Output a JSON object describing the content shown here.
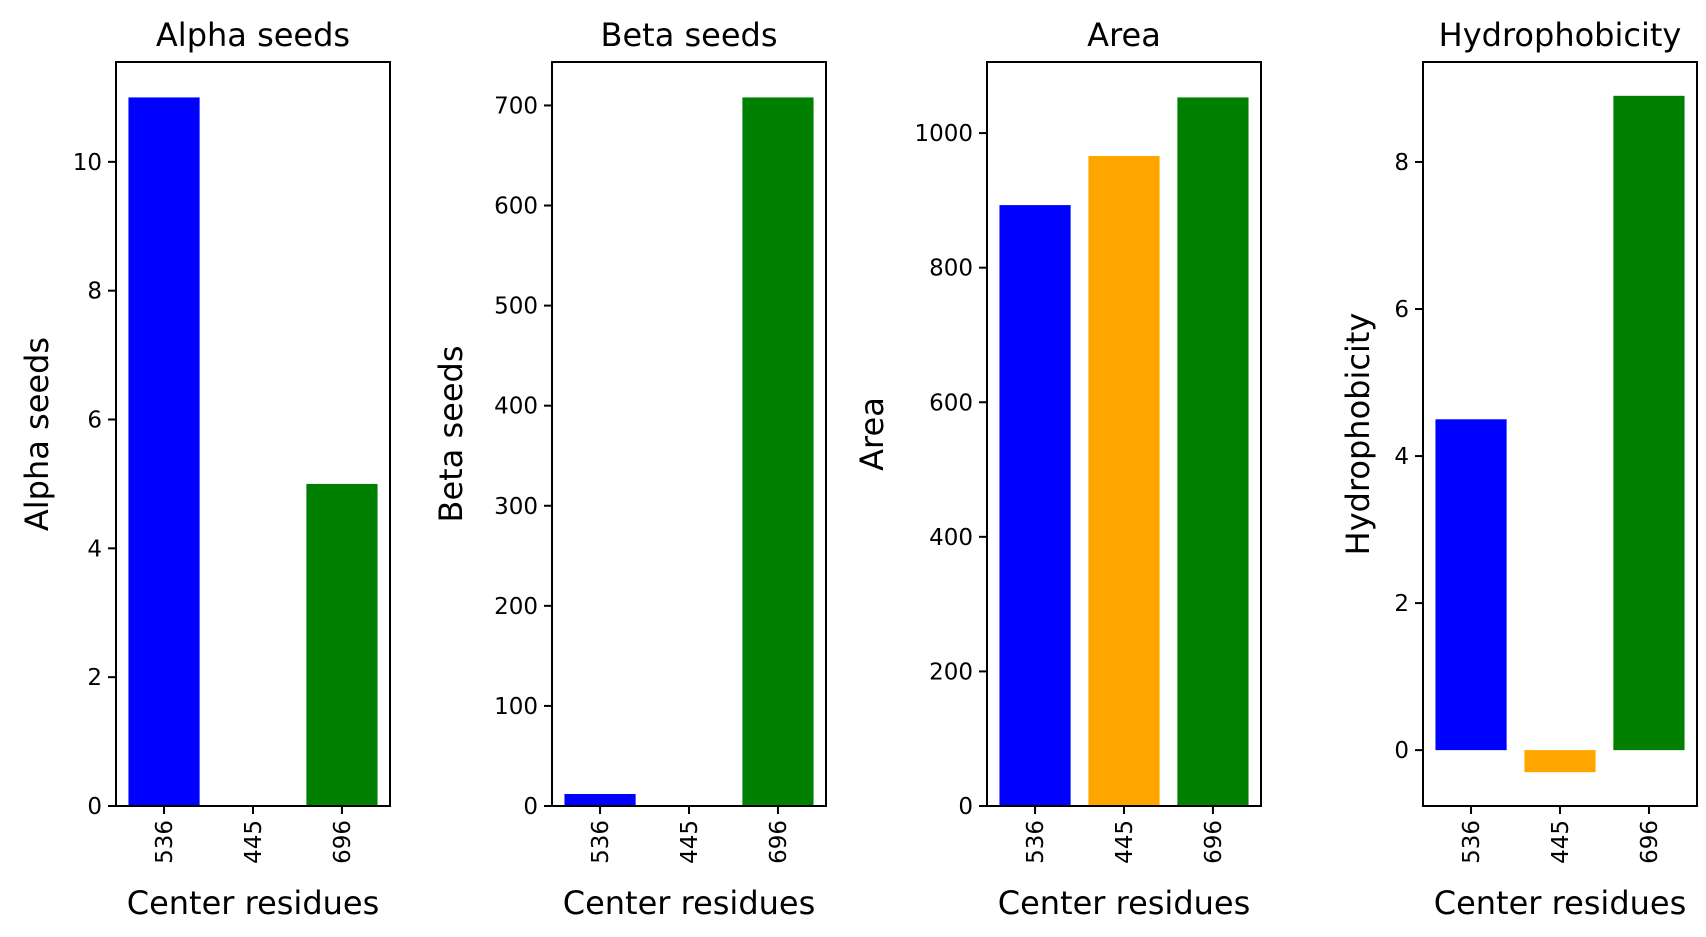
{
  "chart_data": [
    {
      "type": "bar",
      "title": "Alpha seeds",
      "xlabel": "Center residues",
      "ylabel": "Alpha seeds",
      "categories": [
        "536",
        "445",
        "696"
      ],
      "values": [
        11,
        0,
        5
      ],
      "colors": [
        "#0000ff",
        "#ffa500",
        "#008000"
      ],
      "ylim": [
        0,
        11.55
      ],
      "yticks": [
        0,
        2,
        4,
        6,
        8,
        10
      ]
    },
    {
      "type": "bar",
      "title": "Beta seeds",
      "xlabel": "Center residues",
      "ylabel": "Beta seeds",
      "categories": [
        "536",
        "445",
        "696"
      ],
      "values": [
        12,
        0,
        708
      ],
      "colors": [
        "#0000ff",
        "#ffa500",
        "#008000"
      ],
      "ylim": [
        0,
        743.4
      ],
      "yticks": [
        0,
        100,
        200,
        300,
        400,
        500,
        600,
        700
      ]
    },
    {
      "type": "bar",
      "title": "Area",
      "xlabel": "Center residues",
      "ylabel": "Area",
      "categories": [
        "536",
        "445",
        "696"
      ],
      "values": [
        893,
        966,
        1053
      ],
      "colors": [
        "#0000ff",
        "#ffa500",
        "#008000"
      ],
      "ylim": [
        0,
        1105.65
      ],
      "yticks": [
        0,
        200,
        400,
        600,
        800,
        1000
      ]
    },
    {
      "type": "bar",
      "title": "Hydrophobicity",
      "xlabel": "Center residues",
      "ylabel": "Hydrophobicity",
      "categories": [
        "536",
        "445",
        "696"
      ],
      "values": [
        4.5,
        -0.3,
        8.9
      ],
      "colors": [
        "#0000ff",
        "#ffa500",
        "#008000"
      ],
      "ylim": [
        -0.76,
        9.36
      ],
      "yticks": [
        0,
        2,
        4,
        6,
        8
      ]
    }
  ]
}
